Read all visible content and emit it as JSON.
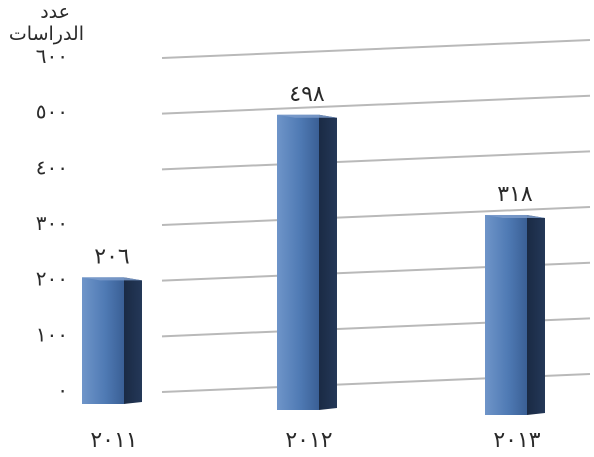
{
  "chart_data": {
    "type": "bar",
    "ylabel_lines": [
      "عدد",
      "الدراسات"
    ],
    "xlabel": "",
    "categories": [
      "٢٠١١",
      "٢٠١٢",
      "٢٠١٣"
    ],
    "values": [
      206,
      498,
      318
    ],
    "data_labels": [
      "٢٠٦",
      "٤٩٨",
      "٣١٨"
    ],
    "yticks": [
      0,
      100,
      200,
      300,
      400,
      500,
      600
    ],
    "ytick_labels": [
      "٠",
      "١٠٠",
      "٢٠٠",
      "٣٠٠",
      "٤٠٠",
      "٥٠٠",
      "٦٠٠"
    ],
    "ylim": [
      0,
      600
    ],
    "grid": true,
    "legend": "none",
    "colors": {
      "bar_front": "#4f7ab4",
      "bar_side": "#1c2c46",
      "bar_top": "#7c9ccb",
      "gridline": "#b9b9b9"
    }
  }
}
